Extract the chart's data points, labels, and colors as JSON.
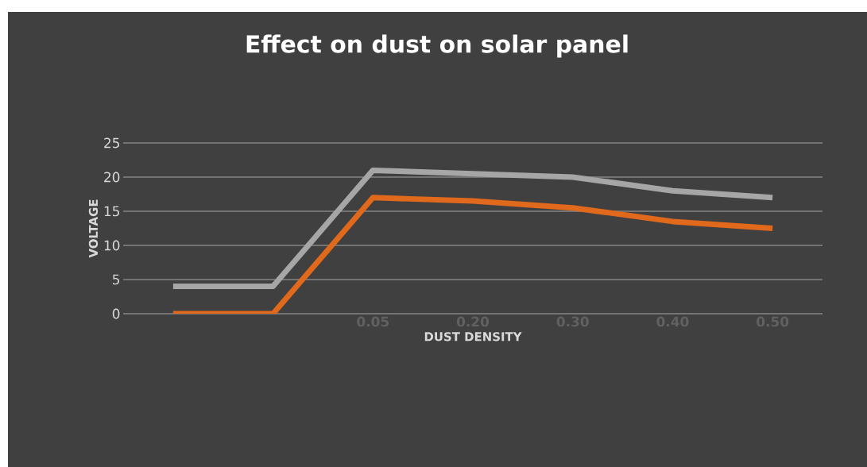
{
  "chart_data": {
    "type": "line",
    "title": "Effect on dust on solar panel",
    "xlabel": "DUST DENSITY",
    "ylabel": "VOLTAGE",
    "categories": [
      null,
      null,
      "0.05",
      "0.20",
      "0.30",
      "0.40",
      "0.50"
    ],
    "series": [
      {
        "color": "#a6a6a6",
        "values": [
          4,
          4,
          21,
          20.5,
          20,
          18,
          17
        ]
      },
      {
        "color": "#e0691c",
        "values": [
          0,
          0,
          17,
          16.5,
          15.5,
          13.5,
          12.5
        ]
      }
    ],
    "ylim": [
      0,
      25
    ],
    "yticks": [
      0,
      5,
      10,
      15,
      20,
      25
    ],
    "grid": "y",
    "marker": "none",
    "line_style": "solid"
  }
}
